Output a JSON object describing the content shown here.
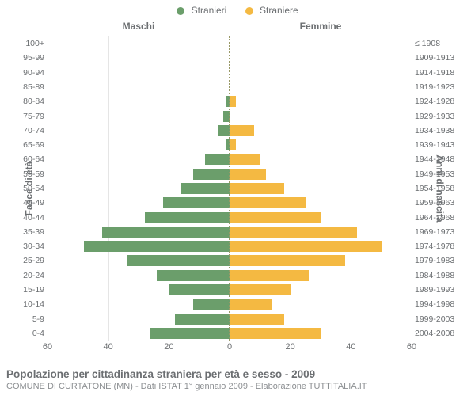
{
  "legend": {
    "male": {
      "label": "Stranieri",
      "color": "#6b9e6b"
    },
    "female": {
      "label": "Straniere",
      "color": "#f4b942"
    }
  },
  "titles": {
    "male": "Maschi",
    "female": "Femmine",
    "left_axis": "Fasce di età",
    "right_axis": "Anni di nascita",
    "footer_title": "Popolazione per cittadinanza straniera per età e sesso - 2009",
    "footer_sub": "COMUNE DI CURTATONE (MN) - Dati ISTAT 1° gennaio 2009 - Elaborazione TUTTITALIA.IT"
  },
  "chart": {
    "type": "population-pyramid",
    "background_color": "#ffffff",
    "grid_color": "#e5e5e5",
    "text_color": "#6c6f72",
    "center_line_color": "#999966",
    "x_max": 60,
    "x_ticks_left": [
      60,
      40,
      20,
      0
    ],
    "x_ticks_right": [
      0,
      20,
      40,
      60
    ],
    "label_fontsize": 10.5,
    "tick_fontsize": 11,
    "title_fontsize": 12,
    "age_groups": [
      {
        "age": "100+",
        "birth": "≤ 1908",
        "male": 0,
        "female": 0
      },
      {
        "age": "95-99",
        "birth": "1909-1913",
        "male": 0,
        "female": 0
      },
      {
        "age": "90-94",
        "birth": "1914-1918",
        "male": 0,
        "female": 0
      },
      {
        "age": "85-89",
        "birth": "1919-1923",
        "male": 0,
        "female": 0
      },
      {
        "age": "80-84",
        "birth": "1924-1928",
        "male": 1,
        "female": 2
      },
      {
        "age": "75-79",
        "birth": "1929-1933",
        "male": 2,
        "female": 0
      },
      {
        "age": "70-74",
        "birth": "1934-1938",
        "male": 4,
        "female": 8
      },
      {
        "age": "65-69",
        "birth": "1939-1943",
        "male": 1,
        "female": 2
      },
      {
        "age": "60-64",
        "birth": "1944-1948",
        "male": 8,
        "female": 10
      },
      {
        "age": "55-59",
        "birth": "1949-1953",
        "male": 12,
        "female": 12
      },
      {
        "age": "50-54",
        "birth": "1954-1958",
        "male": 16,
        "female": 18
      },
      {
        "age": "45-49",
        "birth": "1959-1963",
        "male": 22,
        "female": 25
      },
      {
        "age": "40-44",
        "birth": "1964-1968",
        "male": 28,
        "female": 30
      },
      {
        "age": "35-39",
        "birth": "1969-1973",
        "male": 42,
        "female": 42
      },
      {
        "age": "30-34",
        "birth": "1974-1978",
        "male": 48,
        "female": 50
      },
      {
        "age": "25-29",
        "birth": "1979-1983",
        "male": 34,
        "female": 38
      },
      {
        "age": "20-24",
        "birth": "1984-1988",
        "male": 24,
        "female": 26
      },
      {
        "age": "15-19",
        "birth": "1989-1993",
        "male": 20,
        "female": 20
      },
      {
        "age": "10-14",
        "birth": "1994-1998",
        "male": 12,
        "female": 14
      },
      {
        "age": "5-9",
        "birth": "1999-2003",
        "male": 18,
        "female": 18
      },
      {
        "age": "0-4",
        "birth": "2004-2008",
        "male": 26,
        "female": 30
      }
    ]
  }
}
